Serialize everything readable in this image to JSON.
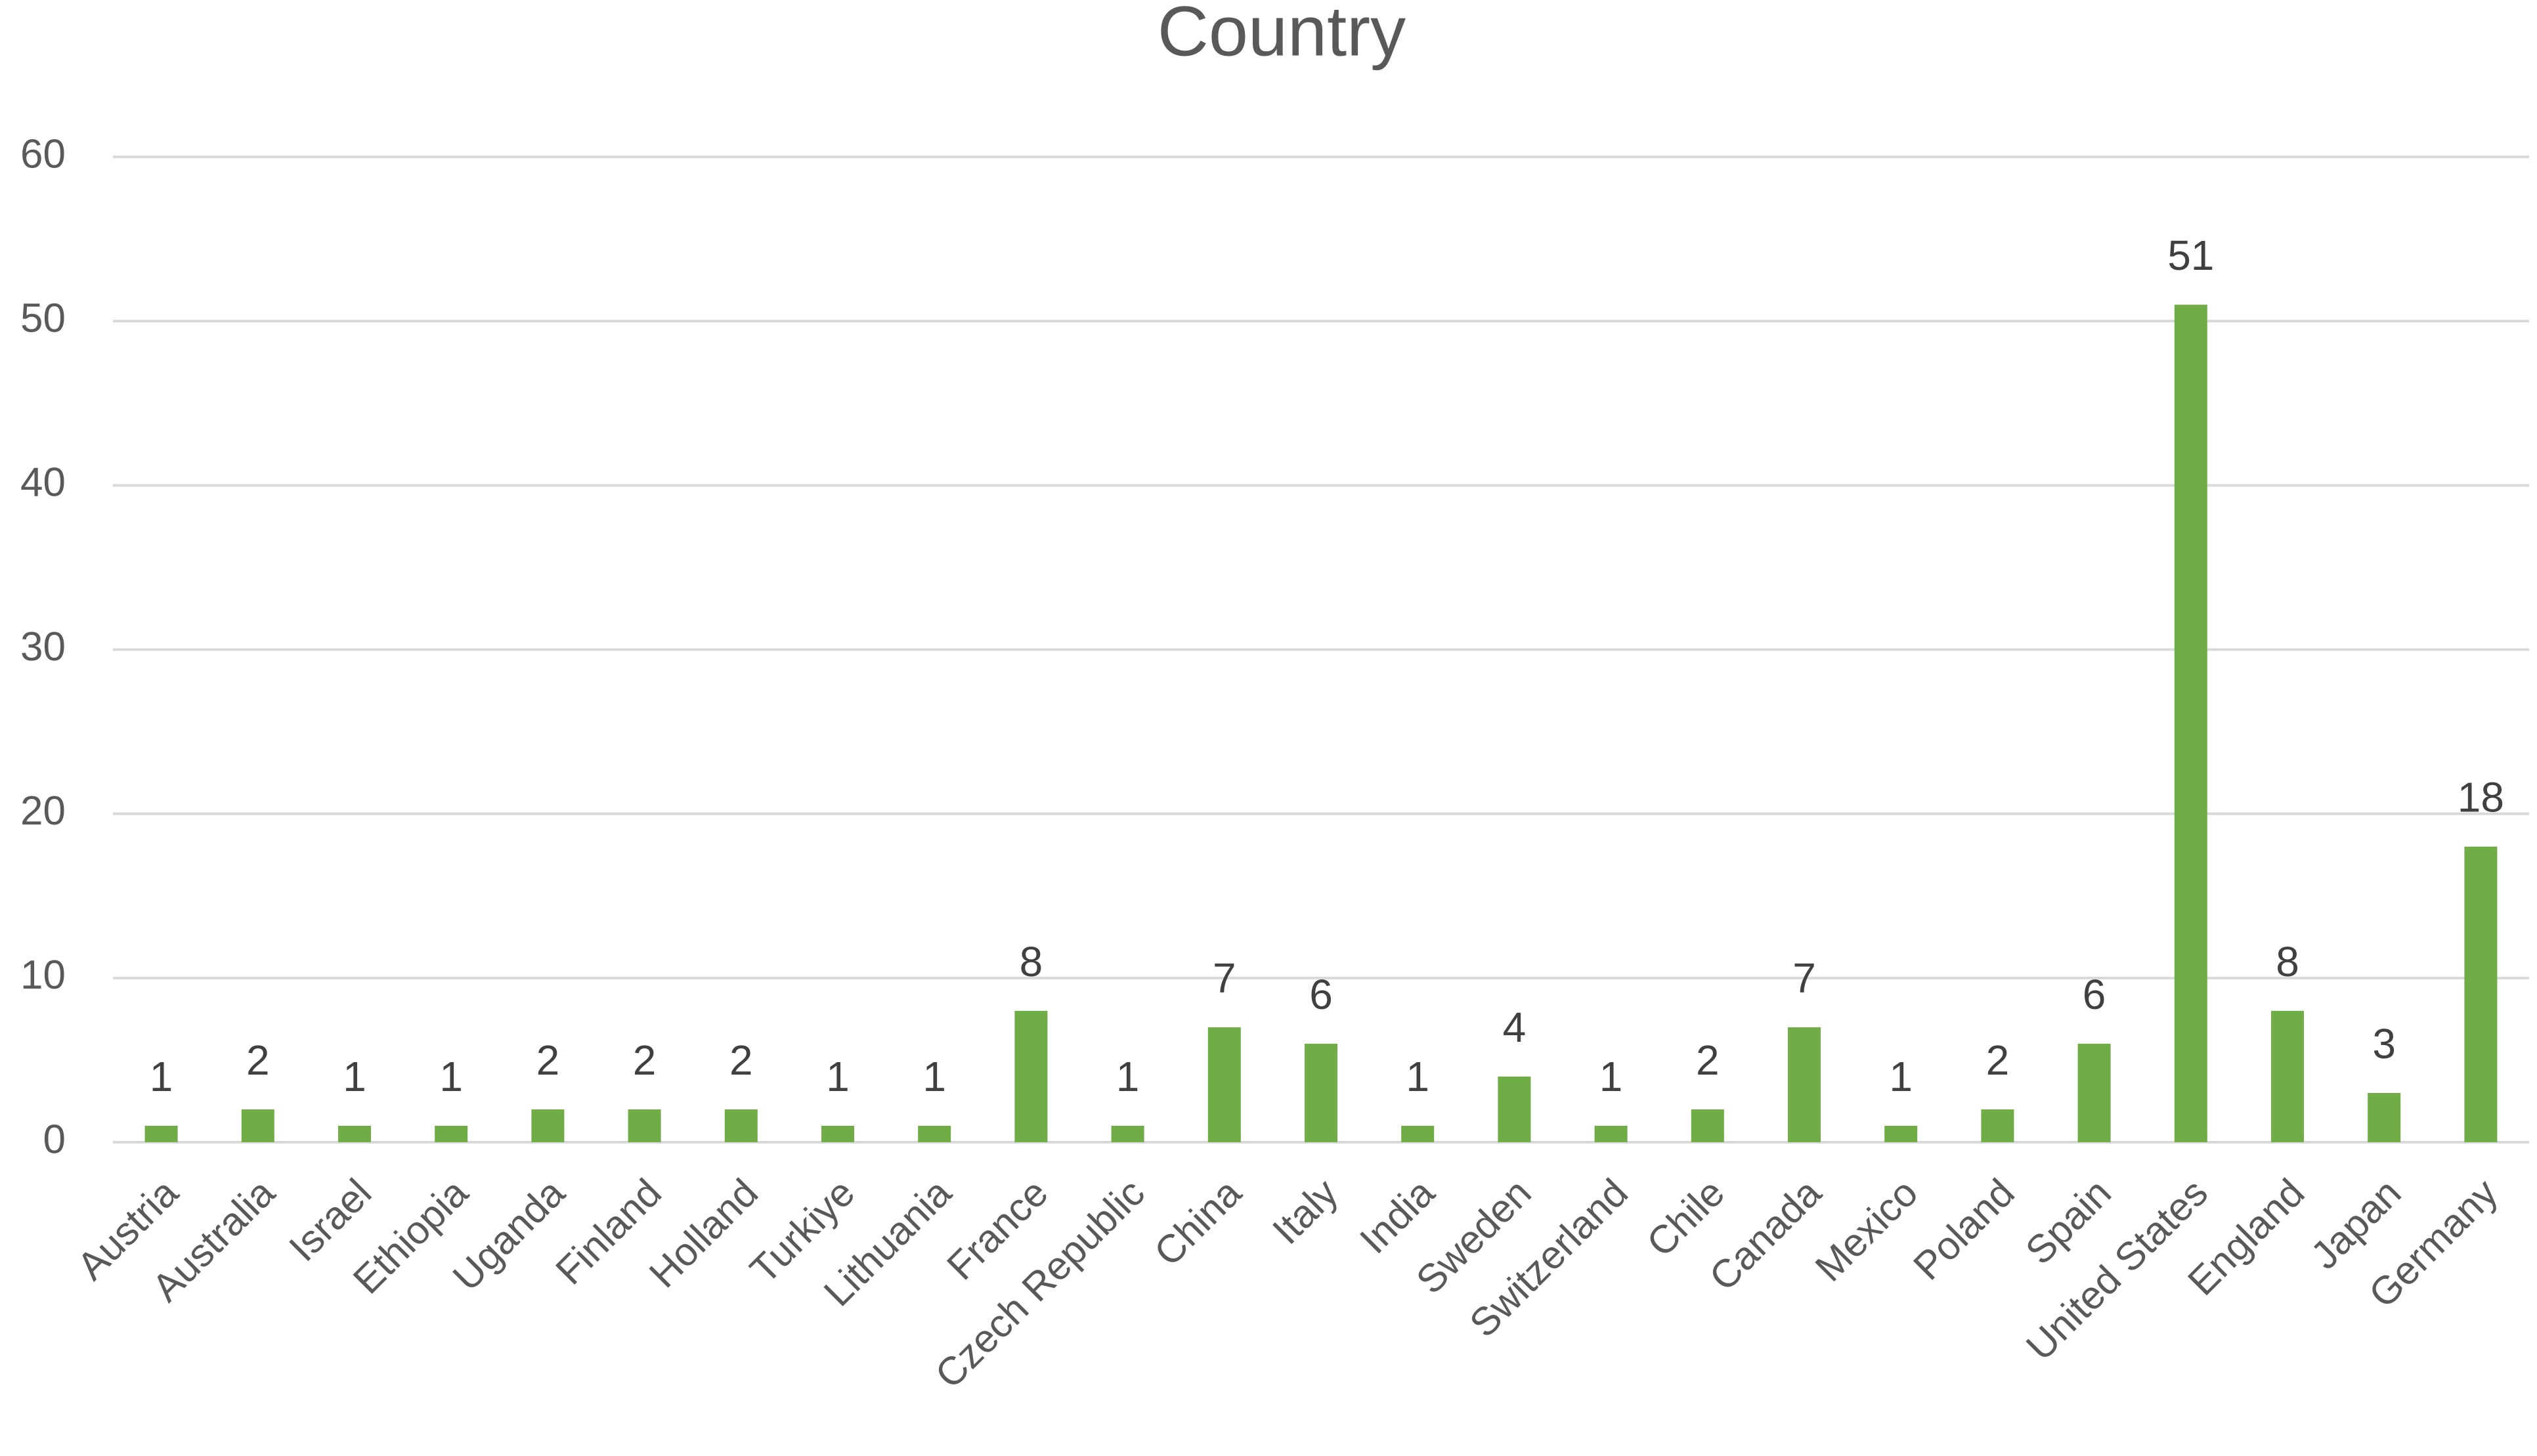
{
  "chart_data": {
    "type": "bar",
    "title": "Country",
    "categories": [
      "Austria",
      "Australia",
      "Israel",
      "Ethiopia",
      "Uganda",
      "Finland",
      "Holland",
      "Turkiye",
      "Lithuania",
      "France",
      "Czech Republic",
      "China",
      "Italy",
      "India",
      "Sweden",
      "Switzerland",
      "Chile",
      "Canada",
      "Mexico",
      "Poland",
      "Spain",
      "United States",
      "England",
      "Japan",
      "Germany"
    ],
    "values": [
      1,
      2,
      1,
      1,
      2,
      2,
      2,
      1,
      1,
      8,
      1,
      7,
      6,
      1,
      4,
      1,
      2,
      7,
      1,
      2,
      6,
      51,
      8,
      3,
      18
    ],
    "color": "#70ad47",
    "ylim": [
      0,
      60
    ],
    "yticks": [
      0,
      10,
      20,
      30,
      40,
      50,
      60
    ],
    "grid": true
  }
}
